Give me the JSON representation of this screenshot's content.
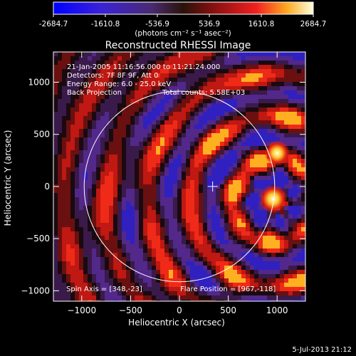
{
  "colorbar": {
    "ticks": [
      "-2684.7",
      "-1610.8",
      "-536.9",
      "536.9",
      "1610.8",
      "2684.7"
    ],
    "range": [
      -2684.7,
      2684.7
    ],
    "unit_label": "(photons cm⁻² s⁻¹ asec⁻²)"
  },
  "chart_data": {
    "type": "heatmap",
    "title": "Reconstructed RHESSI Image",
    "xlabel": "Heliocentric X (arcsec)",
    "ylabel": "Heliocentric Y (arcsec)",
    "xlim": [
      -1290,
      1290
    ],
    "ylim": [
      -1100,
      1290
    ],
    "x_ticks": [
      -1000,
      -500,
      0,
      500,
      1000
    ],
    "y_ticks": [
      -1000,
      -500,
      0,
      500,
      1000
    ],
    "x_tick_labels": [
      "−1000",
      "−500",
      "0",
      "500",
      "1000"
    ],
    "y_tick_labels": [
      "−1000",
      "−500",
      "0",
      "500",
      "1000"
    ],
    "solar_limb_radius": 975,
    "sun_center_marker": [
      340,
      0
    ],
    "hot_spots": [
      {
        "x": 960,
        "y": -120,
        "intensity": 2684.7
      },
      {
        "x": 1000,
        "y": 320,
        "intensity": 2200
      }
    ],
    "annotations": {
      "time": "21-Jan-2005 11:16:56.000 to 11:21:24.000",
      "detectors": "Detectors: 7F 8F 9F, Att 0",
      "energy": "Energy Range: 6.0 - 25.0 keV",
      "method": "Back Projection",
      "counts": "Total counts: 5.58E+03",
      "spin_axis": "Spin Axis = [348,-23]",
      "flare_position": "Flare Position = [967,-118]"
    }
  },
  "footer": {
    "date": "5-Jul-2013 21:12"
  }
}
